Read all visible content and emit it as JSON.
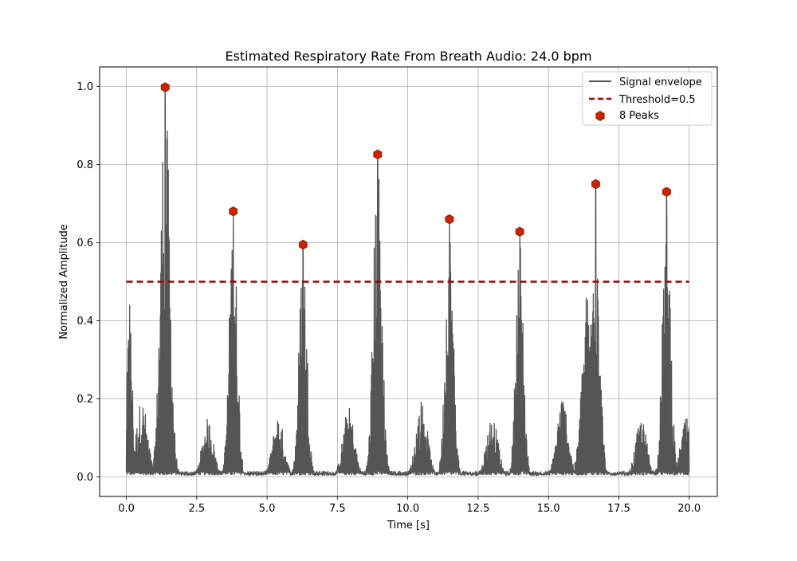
{
  "chart_data": {
    "type": "line",
    "title": "Estimated Respiratory Rate From Breath Audio: 24.0 bpm",
    "xlabel": "Time [s]",
    "ylabel": "Normalized Amplitude",
    "xlim": [
      -0.95,
      21.0
    ],
    "ylim": [
      -0.05,
      1.05
    ],
    "xticks": [
      0.0,
      2.5,
      5.0,
      7.5,
      10.0,
      12.5,
      15.0,
      17.5,
      20.0
    ],
    "xtick_labels": [
      "0.0",
      "2.5",
      "5.0",
      "7.5",
      "10.0",
      "12.5",
      "15.0",
      "17.5",
      "20.0"
    ],
    "yticks": [
      0.0,
      0.2,
      0.4,
      0.6,
      0.8,
      1.0
    ],
    "ytick_labels": [
      "0.0",
      "0.2",
      "0.4",
      "0.6",
      "0.8",
      "1.0"
    ],
    "grid": true,
    "legend_position": "upper right",
    "colors": {
      "signal": "#555555",
      "threshold": "#a00000",
      "peaks": "#cc2200",
      "grid": "#b0b0b0"
    },
    "signal": {
      "name": "Signal envelope",
      "duration": 20.0,
      "bursts": [
        {
          "center": 0.12,
          "height": 0.44,
          "width": 0.2
        },
        {
          "center": 1.38,
          "height": 1.0,
          "width": 0.35
        },
        {
          "center": 3.8,
          "height": 0.68,
          "width": 0.3
        },
        {
          "center": 6.28,
          "height": 0.595,
          "width": 0.3
        },
        {
          "center": 8.93,
          "height": 0.826,
          "width": 0.32
        },
        {
          "center": 11.48,
          "height": 0.66,
          "width": 0.3
        },
        {
          "center": 13.98,
          "height": 0.628,
          "width": 0.28
        },
        {
          "center": 16.68,
          "height": 0.75,
          "width": 0.3
        },
        {
          "center": 19.2,
          "height": 0.73,
          "width": 0.3
        }
      ],
      "minor_bursts": [
        {
          "center": 0.55,
          "height": 0.2
        },
        {
          "center": 2.9,
          "height": 0.15
        },
        {
          "center": 5.4,
          "height": 0.16
        },
        {
          "center": 7.9,
          "height": 0.18
        },
        {
          "center": 10.5,
          "height": 0.2
        },
        {
          "center": 13.0,
          "height": 0.16
        },
        {
          "center": 15.5,
          "height": 0.21
        },
        {
          "center": 16.4,
          "height": 0.49
        },
        {
          "center": 18.3,
          "height": 0.15
        },
        {
          "center": 19.9,
          "height": 0.15
        }
      ]
    },
    "threshold": {
      "name": "Threshold=0.5",
      "value": 0.5,
      "x_range": [
        0.0,
        20.0
      ]
    },
    "peaks": {
      "name": "8 Peaks",
      "x": [
        1.38,
        3.8,
        6.28,
        8.93,
        11.48,
        13.98,
        16.68,
        19.2
      ],
      "y": [
        0.998,
        0.68,
        0.595,
        0.826,
        0.66,
        0.628,
        0.75,
        0.73
      ]
    }
  }
}
